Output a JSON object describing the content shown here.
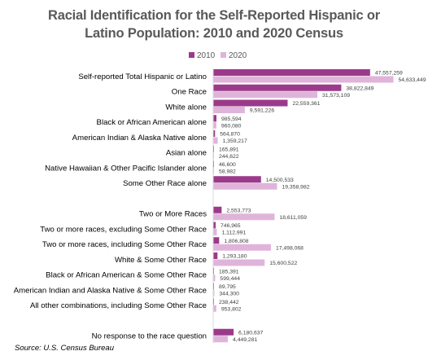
{
  "colors": {
    "series_2010": "#9b3a8a",
    "series_2020": "#e0b4da",
    "title": "#595959",
    "text": "#000000",
    "value_label": "#404040"
  },
  "chart_data": {
    "type": "bar",
    "orientation": "horizontal",
    "title_lines": [
      "Racial Identification for the Self-Reported Hispanic or",
      "Latino Population: 2010 and 2020 Census"
    ],
    "legend_position": "top-center",
    "grid": false,
    "xlim": [
      0,
      55000000
    ],
    "categories": [
      "Self-reported Total Hispanic or Latino",
      "One Race",
      "White alone",
      "Black or African American alone",
      "American Indian & Alaska Native alone",
      "Asian alone",
      "Native Hawaiian & Other Pacific Islander alone",
      "Some Other Race alone",
      "",
      "Two or More Races",
      "Two or more races, excluding Some Other Race",
      "Two or more races, including Some Other Race",
      "White & Some Other Race",
      "Black or African American & Some Other Race",
      "American Indian and Alaska Native & Some Other Race",
      "All other combinations, including Some Other Race",
      "",
      "No response to the race question"
    ],
    "series": [
      {
        "name": "2010",
        "values": [
          47557259,
          38822849,
          22559361,
          985594,
          564870,
          165891,
          46600,
          14500533,
          null,
          2553773,
          746965,
          1806808,
          1293180,
          185391,
          89795,
          238442,
          null,
          6180637
        ],
        "labels": [
          "47,557,259",
          "38,822,849",
          "22,559,361",
          "985,594",
          "564,870",
          "165,891",
          "46,600",
          "14,500,533",
          "",
          "2,553,773",
          "746,965",
          "1,806,808",
          "1,293,180",
          "185,391",
          "89,795",
          "238,442",
          "",
          "6,180,637"
        ]
      },
      {
        "name": "2020",
        "values": [
          54633449,
          31573109,
          9591226,
          960080,
          1359217,
          244622,
          58982,
          19358982,
          null,
          18611059,
          1112991,
          17498068,
          15600522,
          599444,
          344300,
          953802,
          null,
          4449281
        ],
        "labels": [
          "54,633,449",
          "31,573,109",
          "9,591,226",
          "960,080",
          "1,359,217",
          "244,622",
          "58,982",
          "19,358,982",
          "",
          "18,611,059",
          "1,112,991",
          "17,498,068",
          "15,600,522",
          "599,444",
          "344,300",
          "953,802",
          "",
          "4,449,281"
        ]
      }
    ]
  },
  "source": "Source: U.S. Census Bureau"
}
